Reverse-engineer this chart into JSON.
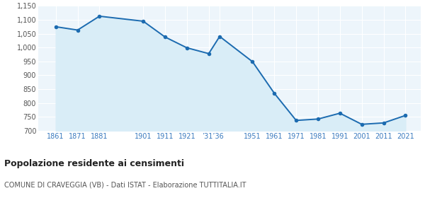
{
  "years": [
    1861,
    1871,
    1881,
    1901,
    1911,
    1921,
    1931,
    1936,
    1951,
    1961,
    1971,
    1981,
    1991,
    2001,
    2011,
    2021
  ],
  "population": [
    1075,
    1063,
    1113,
    1095,
    1038,
    999,
    978,
    1040,
    949,
    835,
    737,
    742,
    763,
    723,
    728,
    755
  ],
  "tick_years": [
    1861,
    1871,
    1881,
    1901,
    1911,
    1921,
    1933,
    1951,
    1961,
    1971,
    1981,
    1991,
    2001,
    2011,
    2021
  ],
  "tick_labels": [
    "1861",
    "1871",
    "1881",
    "1901",
    "1911",
    "1921",
    "’31’36",
    "1951",
    "1961",
    "1971",
    "1981",
    "1991",
    "2001",
    "2011",
    "2021"
  ],
  "line_color": "#1c6bb0",
  "fill_color": "#d9edf7",
  "marker_color": "#1c6bb0",
  "bg_color": "#edf5fb",
  "grid_color": "#ffffff",
  "ylim": [
    700,
    1150
  ],
  "yticks": [
    700,
    750,
    800,
    850,
    900,
    950,
    1000,
    1050,
    1100,
    1150
  ],
  "ytick_labels": [
    "700",
    "750",
    "800",
    "850",
    "900",
    "950",
    "1,000",
    "1,050",
    "1,100",
    "1,150"
  ],
  "title": "Popolazione residente ai censimenti",
  "subtitle": "COMUNE DI CRAVEGGIA (VB) - Dati ISTAT - Elaborazione TUTTITALIA.IT",
  "xlim": [
    1855,
    1027
  ]
}
